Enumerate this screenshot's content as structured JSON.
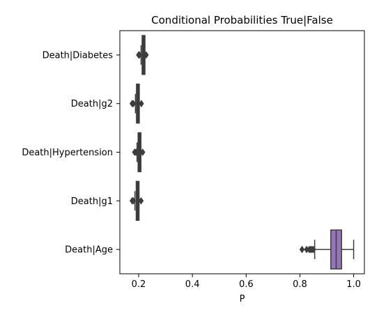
{
  "chart_data": {
    "type": "box",
    "orientation": "horizontal",
    "title": "Conditional Probabilities True|False",
    "xlabel": "P",
    "ylabel": "",
    "xlim": [
      0.13,
      1.04
    ],
    "xticks": [
      0.2,
      0.4,
      0.6,
      0.8,
      1.0
    ],
    "xtick_labels": [
      "0.2",
      "0.4",
      "0.6",
      "0.8",
      "1.0"
    ],
    "grid": false,
    "categories": [
      "Death|Diabetes",
      "Death|g2",
      "Death|Hypertension",
      "Death|g1",
      "Death|Age"
    ],
    "boxes": [
      {
        "label": "Death|Diabetes",
        "q1": 0.213,
        "median": 0.216,
        "q3": 0.219,
        "whisker_low": 0.209,
        "whisker_high": 0.223,
        "outliers": [
          0.2,
          0.203,
          0.228
        ],
        "color": "#3a3a3a"
      },
      {
        "label": "Death|g2",
        "q1": 0.192,
        "median": 0.195,
        "q3": 0.198,
        "whisker_low": 0.188,
        "whisker_high": 0.202,
        "outliers": [
          0.176,
          0.18,
          0.21
        ],
        "color": "#3a3a3a"
      },
      {
        "label": "Death|Hypertension",
        "q1": 0.198,
        "median": 0.201,
        "q3": 0.204,
        "whisker_low": 0.194,
        "whisker_high": 0.208,
        "outliers": [
          0.185,
          0.19,
          0.215
        ],
        "color": "#3a3a3a"
      },
      {
        "label": "Death|g1",
        "q1": 0.191,
        "median": 0.194,
        "q3": 0.197,
        "whisker_low": 0.186,
        "whisker_high": 0.201,
        "outliers": [
          0.176,
          0.18,
          0.209
        ],
        "color": "#3a3a3a"
      },
      {
        "label": "Death|Age",
        "q1": 0.915,
        "median": 0.935,
        "q3": 0.955,
        "whisker_low": 0.855,
        "whisker_high": 1.0,
        "outliers": [
          0.808,
          0.825,
          0.835,
          0.84,
          0.845,
          0.85
        ],
        "color": "#9575b8"
      }
    ]
  }
}
